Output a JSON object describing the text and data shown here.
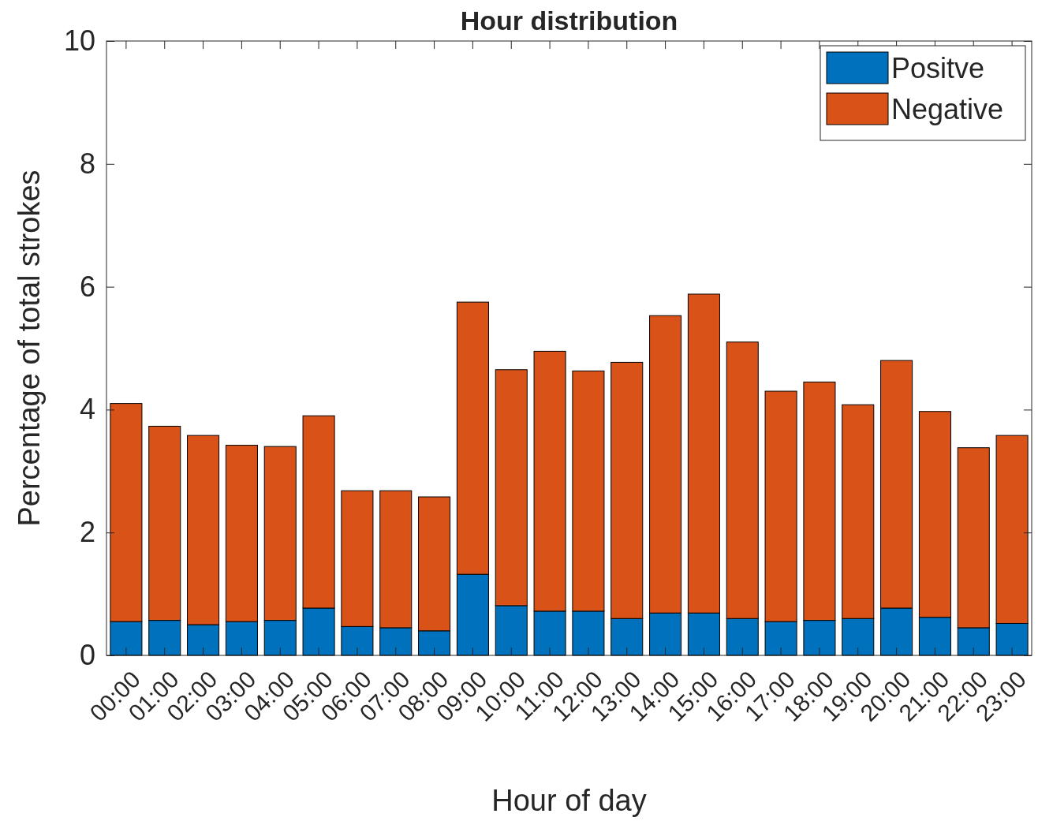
{
  "chart_data": {
    "type": "bar",
    "title": "Hour distribution",
    "xlabel": "Hour of day",
    "ylabel": "Percentage of total strokes",
    "categories": [
      "00:00",
      "01:00",
      "02:00",
      "03:00",
      "04:00",
      "05:00",
      "06:00",
      "07:00",
      "08:00",
      "09:00",
      "10:00",
      "11:00",
      "12:00",
      "13:00",
      "14:00",
      "15:00",
      "16:00",
      "17:00",
      "18:00",
      "19:00",
      "20:00",
      "21:00",
      "22:00",
      "23:00"
    ],
    "stacked": true,
    "series": [
      {
        "name": "Positve",
        "color": "#0072bd",
        "values": [
          0.55,
          0.57,
          0.5,
          0.55,
          0.57,
          0.77,
          0.47,
          0.45,
          0.4,
          1.32,
          0.81,
          0.72,
          0.72,
          0.6,
          0.69,
          0.69,
          0.6,
          0.55,
          0.57,
          0.6,
          0.77,
          0.62,
          0.45,
          0.52
        ]
      },
      {
        "name": "Negative",
        "color": "#d95319",
        "values": [
          3.55,
          3.16,
          3.08,
          2.87,
          2.83,
          3.13,
          2.21,
          2.23,
          2.18,
          4.43,
          3.84,
          4.23,
          3.91,
          4.17,
          4.84,
          5.19,
          4.5,
          3.75,
          3.88,
          3.48,
          4.03,
          3.35,
          2.93,
          3.06
        ]
      }
    ],
    "ylim": [
      0,
      10
    ],
    "yticks": [
      0,
      2,
      4,
      6,
      8,
      10
    ],
    "grid": false,
    "legend": "top right"
  }
}
